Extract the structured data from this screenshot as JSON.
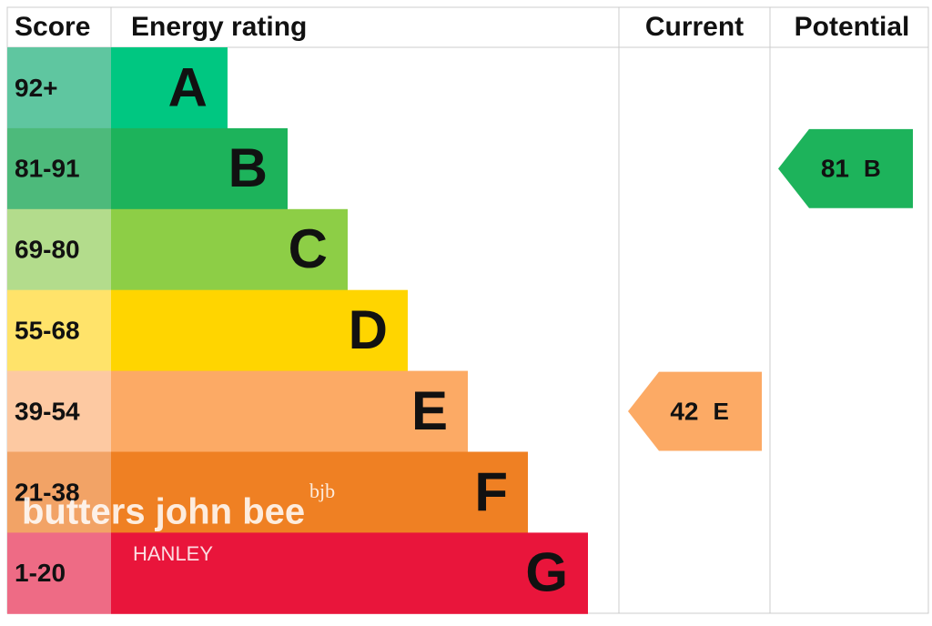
{
  "headers": {
    "score": "Score",
    "rating": "Energy rating",
    "current": "Current",
    "potential": "Potential"
  },
  "bands": [
    {
      "score": "92+",
      "letter": "A",
      "color": "#00c781",
      "score_color": "#5fc6a0"
    },
    {
      "score": "81-91",
      "letter": "B",
      "color": "#1db35b",
      "score_color": "#4dba7b"
    },
    {
      "score": "69-80",
      "letter": "C",
      "color": "#8dce46",
      "score_color": "#b3dc8c"
    },
    {
      "score": "55-68",
      "letter": "D",
      "color": "#ffd500",
      "score_color": "#ffe36a"
    },
    {
      "score": "39-54",
      "letter": "E",
      "color": "#fcaa65",
      "score_color": "#fdc9a2"
    },
    {
      "score": "21-38",
      "letter": "F",
      "color": "#ef8023",
      "score_color": "#f2a366"
    },
    {
      "score": "1-20",
      "letter": "G",
      "color": "#e9153b",
      "score_color": "#ee6b85"
    }
  ],
  "current": {
    "value": "42",
    "letter": "E"
  },
  "potential": {
    "value": "81",
    "letter": "B"
  },
  "watermark": {
    "name": "butters john bee",
    "logo": "bjb",
    "branch": "HANLEY"
  }
}
